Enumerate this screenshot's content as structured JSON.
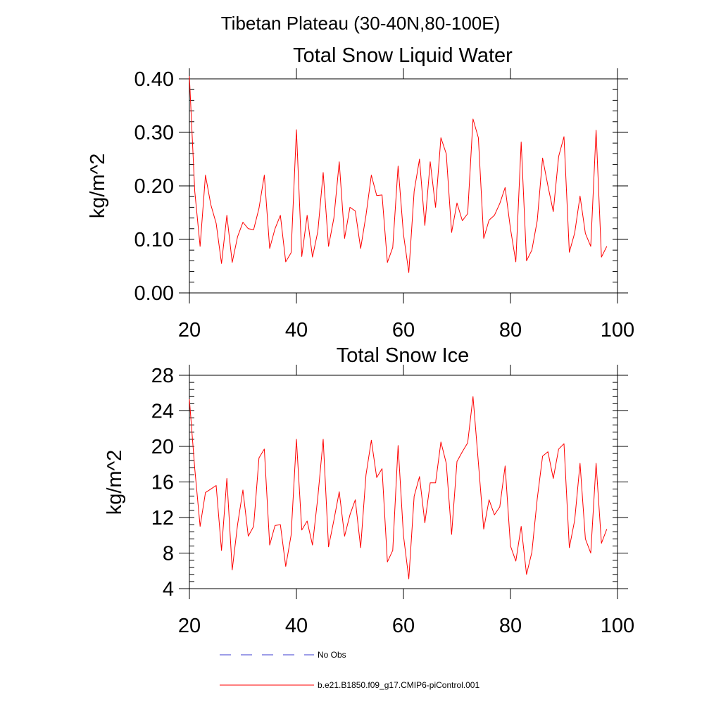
{
  "figure_title": "Tibetan Plateau (30-40N,80-100E)",
  "colors": {
    "model_line": "#ff0000",
    "obs_line": "#3b3bd0",
    "axis": "#000000"
  },
  "legend": [
    {
      "label": "No Obs",
      "style": "dashed",
      "color": "#3b3bd0"
    },
    {
      "label": "b.e21.B1850.f09_g17.CMIP6-piControl.001",
      "style": "solid",
      "color": "#ff0000"
    }
  ],
  "chart_data": [
    {
      "type": "line",
      "title": "Total Snow Liquid Water",
      "xlabel": "",
      "ylabel": "kg/m^2",
      "xlim": [
        20,
        100
      ],
      "ylim": [
        0.0,
        0.4
      ],
      "xticks": [
        20,
        40,
        60,
        80,
        100
      ],
      "xtick_labels": [
        "20",
        "40",
        "60",
        "80",
        "100"
      ],
      "yticks": [
        0.0,
        0.1,
        0.2,
        0.3,
        0.4
      ],
      "ytick_labels": [
        "0.00",
        "0.10",
        "0.20",
        "0.30",
        "0.40"
      ],
      "yminor_step": 0.02,
      "series": [
        {
          "name": "b.e21.B1850.f09_g17.CMIP6-piControl.001",
          "x": [
            20,
            21,
            22,
            23,
            24,
            25,
            26,
            27,
            28,
            29,
            30,
            31,
            32,
            33,
            34,
            35,
            36,
            37,
            38,
            39,
            40,
            41,
            42,
            43,
            44,
            45,
            46,
            47,
            48,
            49,
            50,
            51,
            52,
            53,
            54,
            55,
            56,
            57,
            58,
            59,
            60,
            61,
            62,
            63,
            64,
            65,
            66,
            67,
            68,
            69,
            70,
            71,
            72,
            73,
            74,
            75,
            76,
            77,
            78,
            79,
            80,
            81,
            82,
            83,
            84,
            85,
            86,
            87,
            88,
            89,
            90,
            91,
            92,
            93,
            94,
            95,
            96,
            97,
            98
          ],
          "values": [
            0.405,
            0.19,
            0.087,
            0.22,
            0.165,
            0.13,
            0.055,
            0.145,
            0.057,
            0.105,
            0.132,
            0.12,
            0.118,
            0.158,
            0.22,
            0.083,
            0.12,
            0.145,
            0.058,
            0.075,
            0.305,
            0.068,
            0.145,
            0.067,
            0.115,
            0.225,
            0.087,
            0.14,
            0.245,
            0.102,
            0.16,
            0.153,
            0.083,
            0.145,
            0.22,
            0.182,
            0.183,
            0.057,
            0.085,
            0.237,
            0.11,
            0.038,
            0.19,
            0.25,
            0.126,
            0.245,
            0.16,
            0.29,
            0.26,
            0.113,
            0.168,
            0.135,
            0.148,
            0.325,
            0.29,
            0.102,
            0.136,
            0.145,
            0.167,
            0.197,
            0.12,
            0.058,
            0.282,
            0.06,
            0.08,
            0.135,
            0.252,
            0.2,
            0.152,
            0.255,
            0.292,
            0.076,
            0.112,
            0.181,
            0.111,
            0.087,
            0.304,
            0.067,
            0.087
          ]
        }
      ]
    },
    {
      "type": "line",
      "title": "Total Snow Ice",
      "xlabel": "",
      "ylabel": "kg/m^2",
      "xlim": [
        20,
        100
      ],
      "ylim": [
        4,
        28
      ],
      "xticks": [
        20,
        40,
        60,
        80,
        100
      ],
      "xtick_labels": [
        "20",
        "40",
        "60",
        "80",
        "100"
      ],
      "yticks": [
        4,
        8,
        12,
        16,
        20,
        24,
        28
      ],
      "ytick_labels": [
        "4",
        "8",
        "12",
        "16",
        "20",
        "24",
        "28"
      ],
      "yminor_step": 0.8,
      "series": [
        {
          "name": "b.e21.B1850.f09_g17.CMIP6-piControl.001",
          "x": [
            20,
            21,
            22,
            23,
            24,
            25,
            26,
            27,
            28,
            29,
            30,
            31,
            32,
            33,
            34,
            35,
            36,
            37,
            38,
            39,
            40,
            41,
            42,
            43,
            44,
            45,
            46,
            47,
            48,
            49,
            50,
            51,
            52,
            53,
            54,
            55,
            56,
            57,
            58,
            59,
            60,
            61,
            62,
            63,
            64,
            65,
            66,
            67,
            68,
            69,
            70,
            71,
            72,
            73,
            74,
            75,
            76,
            77,
            78,
            79,
            80,
            81,
            82,
            83,
            84,
            85,
            86,
            87,
            88,
            89,
            90,
            91,
            92,
            93,
            94,
            95,
            96,
            97,
            98
          ],
          "values": [
            25.3,
            17.5,
            11.0,
            14.8,
            15.2,
            15.6,
            8.3,
            16.4,
            6.1,
            11.2,
            15.1,
            9.9,
            11.0,
            18.7,
            19.7,
            8.9,
            11.1,
            11.2,
            6.5,
            10.0,
            20.8,
            10.6,
            11.6,
            8.9,
            14.3,
            20.8,
            8.7,
            11.7,
            14.9,
            9.9,
            12.3,
            14.0,
            8.6,
            16.8,
            20.7,
            16.5,
            17.5,
            7.0,
            8.3,
            20.1,
            10.0,
            5.1,
            14.4,
            16.6,
            11.4,
            15.9,
            15.9,
            20.5,
            18.1,
            10.1,
            18.3,
            19.4,
            20.4,
            25.6,
            18.2,
            10.7,
            14.0,
            12.3,
            13.2,
            17.8,
            8.8,
            7.1,
            11.0,
            5.6,
            8.1,
            14.1,
            18.9,
            19.4,
            16.4,
            19.7,
            20.3,
            8.6,
            11.7,
            18.1,
            9.6,
            8.0,
            18.1,
            9.1,
            10.7
          ]
        }
      ]
    }
  ]
}
